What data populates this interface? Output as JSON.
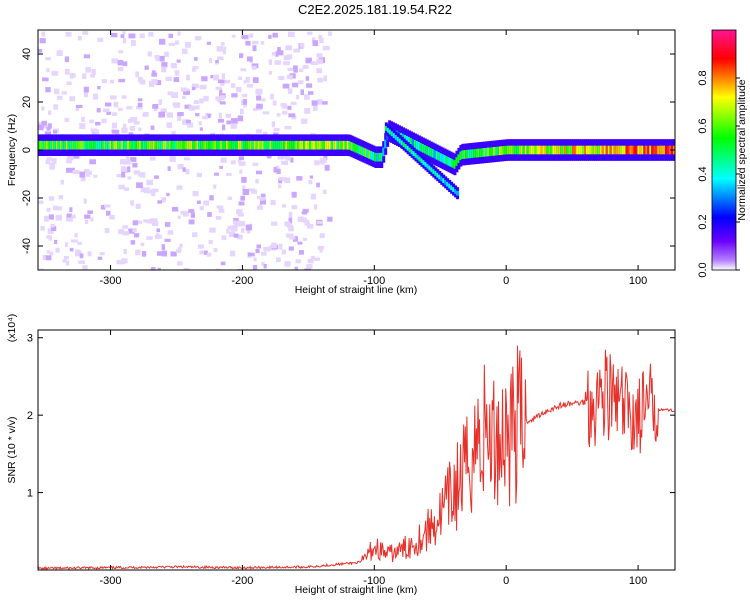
{
  "figure": {
    "title": "C2E2.2025.181.19.54.R22"
  },
  "chart_data": [
    {
      "type": "heatmap",
      "xlabel": "Height of straight line (km)",
      "ylabel": "Frequency (Hz)",
      "xlim": [
        -355,
        128
      ],
      "ylim": [
        -50,
        50
      ],
      "xticks": [
        -300,
        -200,
        -100,
        0,
        100
      ],
      "yticks": [
        -40,
        -20,
        0,
        20,
        40
      ],
      "colorbar": {
        "label": "Normalized spectral amplitude",
        "range": [
          0,
          1
        ],
        "ticks": [
          "0.0",
          "0.2",
          "0.4",
          "0.6",
          "0.8"
        ],
        "colormap": [
          "#ffffff",
          "#7a00ff",
          "#0000ff",
          "#00ffff",
          "#00ff00",
          "#ffff00",
          "#ff0000",
          "#ff1493"
        ]
      },
      "ridge": [
        {
          "x": -355,
          "f": 2,
          "amp": 0.55
        },
        {
          "x": -120,
          "f": 2,
          "amp": 0.6
        },
        {
          "x": -100,
          "f": -3,
          "amp": 0.5
        },
        {
          "x": -95,
          "f": -3,
          "amp": 0.45
        },
        {
          "x": -90,
          "f": 8,
          "amp": 0.4
        },
        {
          "x": -40,
          "f": -6,
          "amp": 0.5
        },
        {
          "x": -35,
          "f": -2,
          "amp": 0.5
        },
        {
          "x": 0,
          "f": 0,
          "amp": 0.6
        },
        {
          "x": 128,
          "f": 0,
          "amp": 0.85
        }
      ],
      "grid": false
    },
    {
      "type": "line",
      "xlabel": "Height of straight line (km)",
      "ylabel": "SNR (10 * v/v)",
      "yscale_note": "(x10⁴)",
      "xlim": [
        -355,
        128
      ],
      "ylim": [
        0,
        3.1
      ],
      "xticks": [
        -300,
        -200,
        -100,
        0,
        100
      ],
      "yticks": [
        1,
        2,
        3
      ],
      "line_color": "#e8302a",
      "series": [
        {
          "x": [
            -355,
            -300,
            -250,
            -200,
            -150,
            -110,
            -100,
            -90,
            -80,
            -70,
            -60,
            -50,
            -40,
            -30,
            -25,
            -20,
            -15,
            -10,
            -5,
            0,
            10,
            20,
            30,
            40,
            50,
            60,
            70,
            75,
            80,
            90,
            100,
            110,
            120,
            128
          ],
          "y": [
            0.02,
            0.03,
            0.04,
            0.03,
            0.04,
            0.1,
            0.3,
            0.2,
            0.25,
            0.35,
            0.5,
            0.7,
            1.0,
            1.3,
            1.6,
            1.7,
            1.8,
            1.65,
            1.75,
            1.8,
            1.9,
            1.95,
            2.05,
            2.12,
            2.15,
            2.17,
            2.2,
            2.35,
            2.2,
            2.05,
            2.0,
            2.1,
            2.07,
            2.06
          ]
        }
      ],
      "grid": false
    }
  ]
}
